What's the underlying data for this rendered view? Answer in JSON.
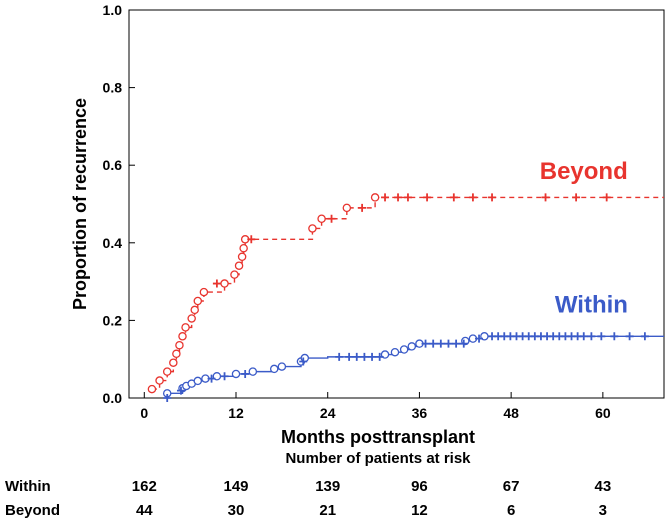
{
  "chart_data": {
    "type": "line",
    "xlabel": "Months posttransplant",
    "ylabel": "Proportion of recurrence",
    "xlim": [
      -2,
      68
    ],
    "ylim": [
      0,
      1.0
    ],
    "x_ticks": [
      0,
      12,
      24,
      36,
      48,
      60
    ],
    "x_tick_labels": [
      "0",
      "12",
      "24",
      "36",
      "48",
      "60"
    ],
    "y_ticks": [
      0,
      0.2,
      0.4,
      0.6,
      0.8,
      1.0
    ],
    "y_tick_labels": [
      "0.0",
      "0.2",
      "0.4",
      "0.6",
      "0.8",
      "1.0"
    ],
    "grid": false,
    "series": [
      {
        "name": "Beyond",
        "color": "#e8342e",
        "line_style": "dashed",
        "steps": [
          [
            1,
            0.023
          ],
          [
            2,
            0.045
          ],
          [
            3,
            0.068
          ],
          [
            3.8,
            0.091
          ],
          [
            4.2,
            0.114
          ],
          [
            4.6,
            0.136
          ],
          [
            5.0,
            0.159
          ],
          [
            5.4,
            0.182
          ],
          [
            6.2,
            0.205
          ],
          [
            6.6,
            0.227
          ],
          [
            7.0,
            0.25
          ],
          [
            7.8,
            0.273
          ],
          [
            10.5,
            0.295
          ],
          [
            11.8,
            0.318
          ],
          [
            12.4,
            0.341
          ],
          [
            12.8,
            0.364
          ],
          [
            13.0,
            0.386
          ],
          [
            13.2,
            0.409
          ],
          [
            22.0,
            0.437
          ],
          [
            23.2,
            0.462
          ],
          [
            26.5,
            0.49
          ],
          [
            30.2,
            0.517
          ],
          [
            70,
            0.517
          ]
        ],
        "events": [
          [
            1,
            0.023
          ],
          [
            2,
            0.045
          ],
          [
            3,
            0.068
          ],
          [
            3.8,
            0.091
          ],
          [
            4.2,
            0.114
          ],
          [
            4.6,
            0.136
          ],
          [
            5.0,
            0.159
          ],
          [
            5.4,
            0.182
          ],
          [
            6.2,
            0.205
          ],
          [
            6.6,
            0.227
          ],
          [
            7.0,
            0.25
          ],
          [
            7.8,
            0.273
          ],
          [
            10.5,
            0.295
          ],
          [
            11.8,
            0.318
          ],
          [
            12.4,
            0.341
          ],
          [
            12.8,
            0.364
          ],
          [
            13.0,
            0.386
          ],
          [
            13.2,
            0.409
          ],
          [
            22.0,
            0.437
          ],
          [
            23.2,
            0.462
          ],
          [
            26.5,
            0.49
          ],
          [
            30.2,
            0.517
          ]
        ],
        "censored": [
          [
            9.5,
            0.295
          ],
          [
            14.0,
            0.409
          ],
          [
            24.5,
            0.462
          ],
          [
            28.5,
            0.49
          ],
          [
            31.5,
            0.517
          ],
          [
            33.2,
            0.517
          ],
          [
            34.5,
            0.517
          ],
          [
            37.0,
            0.517
          ],
          [
            40.5,
            0.517
          ],
          [
            43.0,
            0.517
          ],
          [
            45.5,
            0.517
          ],
          [
            52.5,
            0.517
          ],
          [
            56.5,
            0.517
          ],
          [
            60.5,
            0.517
          ]
        ]
      },
      {
        "name": "Within",
        "color": "#3b5bc8",
        "line_style": "solid",
        "steps": [
          [
            3,
            0.012
          ],
          [
            5,
            0.025
          ],
          [
            5.5,
            0.031
          ],
          [
            6.2,
            0.037
          ],
          [
            7.0,
            0.044
          ],
          [
            8.0,
            0.05
          ],
          [
            9.5,
            0.056
          ],
          [
            12.0,
            0.062
          ],
          [
            14.2,
            0.068
          ],
          [
            17.0,
            0.075
          ],
          [
            18.0,
            0.081
          ],
          [
            20.5,
            0.094
          ],
          [
            21.0,
            0.103
          ],
          [
            24.0,
            0.106
          ],
          [
            31.5,
            0.112
          ],
          [
            32.8,
            0.118
          ],
          [
            34.0,
            0.125
          ],
          [
            35.0,
            0.133
          ],
          [
            36.0,
            0.14
          ],
          [
            42.0,
            0.147
          ],
          [
            43.0,
            0.153
          ],
          [
            44.5,
            0.159
          ],
          [
            70,
            0.159
          ]
        ],
        "events": [
          [
            3,
            0.012
          ],
          [
            5,
            0.025
          ],
          [
            5.5,
            0.031
          ],
          [
            6.2,
            0.037
          ],
          [
            7.0,
            0.044
          ],
          [
            8.0,
            0.05
          ],
          [
            9.5,
            0.056
          ],
          [
            12.0,
            0.062
          ],
          [
            14.2,
            0.068
          ],
          [
            17.0,
            0.075
          ],
          [
            18.0,
            0.081
          ],
          [
            20.5,
            0.094
          ],
          [
            21.0,
            0.103
          ],
          [
            31.5,
            0.112
          ],
          [
            32.8,
            0.118
          ],
          [
            34.0,
            0.125
          ],
          [
            35.0,
            0.133
          ],
          [
            36.0,
            0.14
          ],
          [
            42.0,
            0.147
          ],
          [
            43.0,
            0.153
          ],
          [
            44.5,
            0.159
          ]
        ],
        "censored": [
          [
            3.0,
            0.0
          ],
          [
            4.8,
            0.019
          ],
          [
            8.8,
            0.05
          ],
          [
            10.5,
            0.056
          ],
          [
            13.2,
            0.062
          ],
          [
            20.8,
            0.094
          ],
          [
            25.5,
            0.106
          ],
          [
            26.8,
            0.106
          ],
          [
            27.8,
            0.106
          ],
          [
            28.8,
            0.106
          ],
          [
            29.8,
            0.106
          ],
          [
            30.8,
            0.106
          ],
          [
            36.8,
            0.14
          ],
          [
            37.8,
            0.14
          ],
          [
            38.8,
            0.14
          ],
          [
            39.8,
            0.14
          ],
          [
            40.8,
            0.14
          ],
          [
            41.8,
            0.14
          ],
          [
            43.8,
            0.153
          ],
          [
            45.5,
            0.159
          ],
          [
            46.3,
            0.159
          ],
          [
            47.1,
            0.159
          ],
          [
            47.9,
            0.159
          ],
          [
            48.7,
            0.159
          ],
          [
            49.5,
            0.159
          ],
          [
            50.3,
            0.159
          ],
          [
            51.1,
            0.159
          ],
          [
            51.9,
            0.159
          ],
          [
            52.7,
            0.159
          ],
          [
            53.5,
            0.159
          ],
          [
            54.3,
            0.159
          ],
          [
            55.1,
            0.159
          ],
          [
            55.9,
            0.159
          ],
          [
            56.7,
            0.159
          ],
          [
            57.5,
            0.159
          ],
          [
            58.5,
            0.159
          ],
          [
            59.8,
            0.159
          ],
          [
            61.5,
            0.159
          ],
          [
            63.5,
            0.159
          ],
          [
            65.5,
            0.159
          ]
        ]
      }
    ],
    "labels": [
      {
        "text": "Beyond",
        "series": "Beyond",
        "x": 57.5,
        "y": 0.565
      },
      {
        "text": "Within",
        "series": "Within",
        "x": 58.5,
        "y": 0.22
      }
    ],
    "risk_table": {
      "title": "Number of patients at risk",
      "times": [
        0,
        12,
        24,
        36,
        48,
        60
      ],
      "rows": [
        {
          "label": "Within",
          "values": [
            "162",
            "149",
            "139",
            "96",
            "67",
            "43"
          ]
        },
        {
          "label": "Beyond",
          "values": [
            "44",
            "30",
            "21",
            "12",
            "6",
            "3"
          ]
        }
      ]
    }
  }
}
